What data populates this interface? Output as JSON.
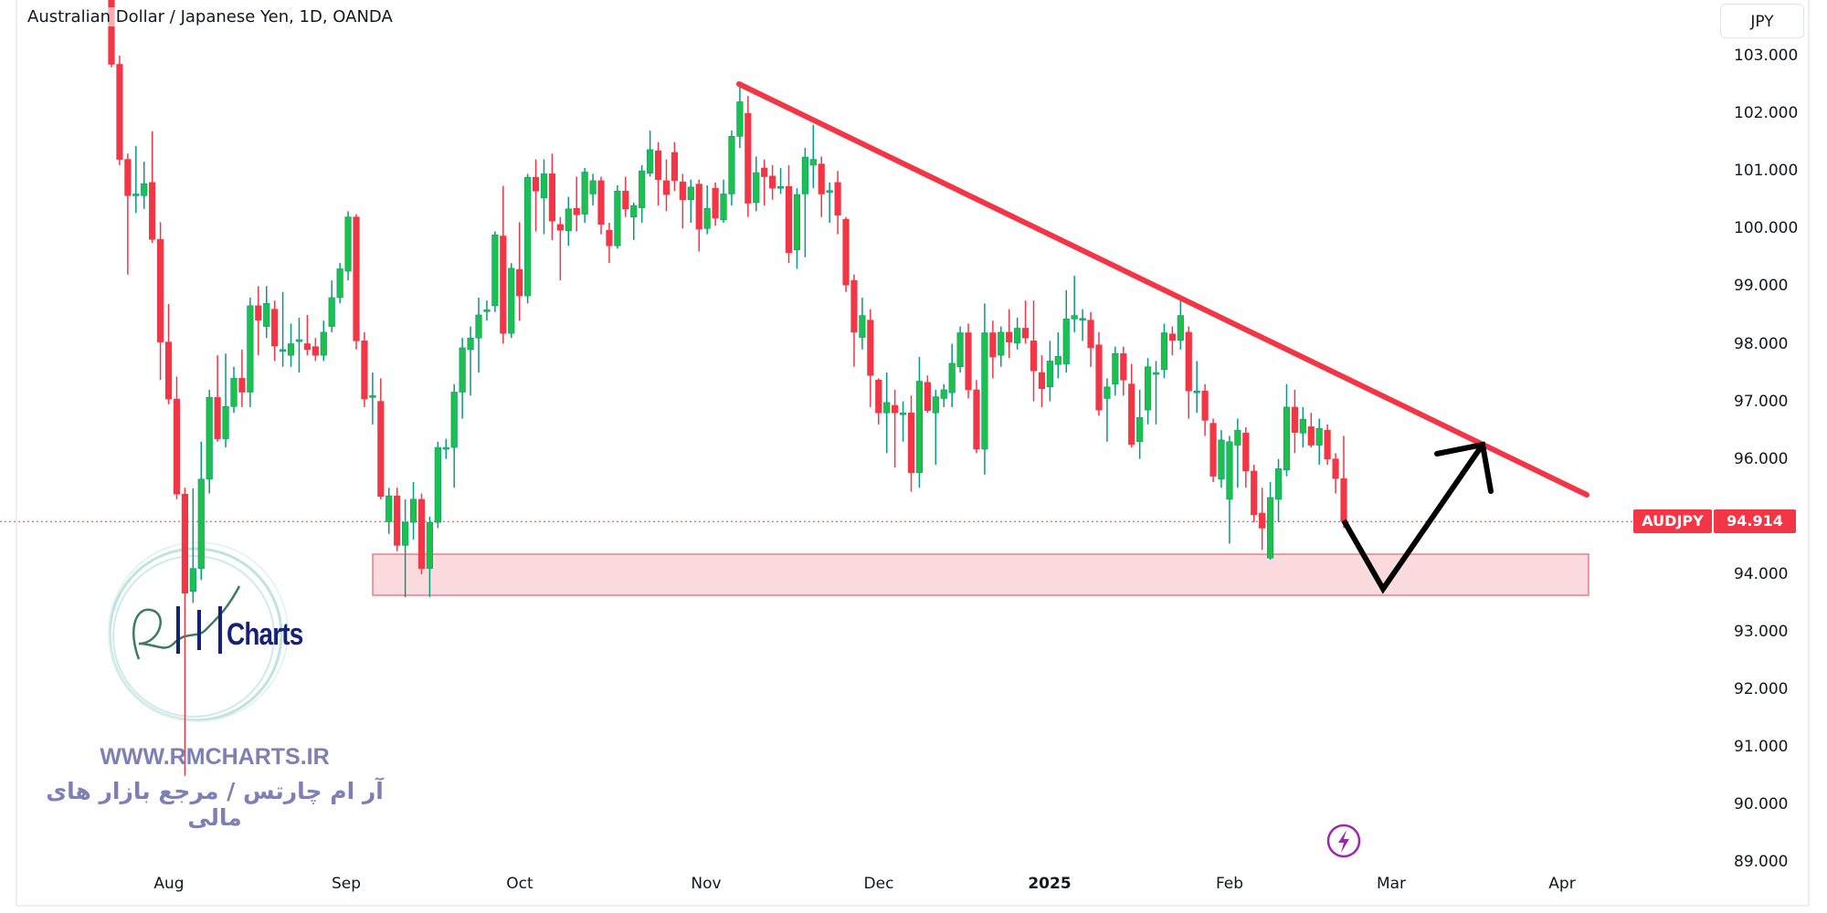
{
  "header": {
    "title": "Australian Dollar / Japanese Yen, 1D, OANDA",
    "currency": "JPY"
  },
  "price_label": {
    "symbol": "AUDJPY",
    "value": "94.914"
  },
  "watermark": {
    "url": "WWW.RMCHARTS.IR",
    "tagline": "آر ام چارتس / مرجع بازار های مالی",
    "logo_text": "Charts"
  },
  "icons": {
    "alert": "lightning-icon"
  },
  "colors": {
    "up": "#089981",
    "up_body": "#1bc14b",
    "down": "#f23645",
    "trendline": "#f23645",
    "zone_fill": "#fcd5d9",
    "arrow": "#000000",
    "last_price_line": "#f23645",
    "watermark": "#7d80b4",
    "alert_icon": "#9c27b0"
  },
  "chart_data": {
    "type": "candlestick",
    "title": "Australian Dollar / Japanese Yen, 1D, OANDA",
    "y_axis": {
      "ticks": [
        "103.000",
        "102.000",
        "101.000",
        "100.000",
        "99.000",
        "98.000",
        "97.000",
        "96.000",
        "94.000",
        "93.000",
        "92.000",
        "91.000",
        "90.000",
        "89.000"
      ],
      "range": [
        89,
        103
      ],
      "position": "right"
    },
    "x_axis": {
      "ticks": [
        "Aug",
        "Sep",
        "Oct",
        "Nov",
        "Dec",
        "2025",
        "Feb",
        "Mar",
        "Apr"
      ]
    },
    "last_price": 94.914,
    "grid": false,
    "ohlc": [
      [
        104.6,
        104.8,
        102.8,
        102.85
      ],
      [
        102.85,
        103.0,
        101.1,
        101.2
      ],
      [
        101.2,
        101.3,
        99.2,
        100.57
      ],
      [
        100.57,
        101.43,
        100.27,
        100.6
      ],
      [
        100.57,
        101.16,
        100.34,
        100.78
      ],
      [
        100.8,
        101.69,
        99.75,
        99.81
      ],
      [
        99.81,
        100.11,
        97.37,
        98.03
      ],
      [
        98.03,
        98.69,
        96.95,
        97.04
      ],
      [
        97.04,
        97.43,
        95.3,
        95.39
      ],
      [
        95.39,
        95.5,
        90.5,
        93.67
      ],
      [
        93.7,
        95.49,
        93.5,
        94.1
      ],
      [
        94.1,
        96.3,
        93.9,
        95.65
      ],
      [
        95.65,
        97.2,
        95.4,
        97.07
      ],
      [
        97.07,
        97.8,
        96.3,
        96.35
      ],
      [
        96.35,
        97.83,
        96.2,
        96.91
      ],
      [
        96.91,
        97.6,
        96.8,
        97.4
      ],
      [
        97.4,
        97.9,
        96.9,
        97.16
      ],
      [
        97.16,
        98.8,
        96.9,
        98.66
      ],
      [
        98.66,
        99.0,
        97.8,
        98.41
      ],
      [
        98.3,
        99.0,
        98.1,
        98.7
      ],
      [
        98.6,
        98.75,
        97.7,
        97.96
      ],
      [
        97.87,
        98.9,
        97.6,
        97.9
      ],
      [
        97.8,
        98.35,
        97.6,
        98.0
      ],
      [
        98.05,
        98.45,
        97.5,
        98.07
      ],
      [
        98.0,
        98.5,
        97.8,
        97.9
      ],
      [
        97.95,
        98.1,
        97.7,
        97.8
      ],
      [
        97.8,
        98.4,
        97.7,
        98.2
      ],
      [
        98.3,
        99.1,
        98.2,
        98.8
      ],
      [
        98.8,
        99.4,
        98.7,
        99.3
      ],
      [
        99.26,
        100.3,
        99.1,
        100.2
      ],
      [
        100.2,
        100.25,
        97.9,
        98.05
      ],
      [
        98.05,
        98.2,
        96.9,
        97.04
      ],
      [
        97.07,
        97.5,
        96.6,
        97.1
      ],
      [
        97.0,
        97.4,
        95.3,
        95.35
      ],
      [
        94.91,
        95.5,
        94.7,
        95.36
      ],
      [
        95.36,
        95.5,
        94.4,
        94.5
      ],
      [
        94.5,
        95.3,
        93.6,
        94.9
      ],
      [
        94.9,
        95.6,
        94.6,
        95.3
      ],
      [
        95.3,
        95.4,
        94.0,
        94.1
      ],
      [
        94.1,
        95.0,
        93.6,
        94.9
      ],
      [
        94.9,
        96.3,
        94.8,
        96.2
      ],
      [
        96.2,
        96.35,
        96.0,
        96.2
      ],
      [
        96.2,
        97.3,
        95.5,
        97.16
      ],
      [
        97.16,
        98.1,
        96.7,
        97.93
      ],
      [
        97.9,
        98.3,
        97.1,
        98.1
      ],
      [
        98.1,
        98.8,
        97.5,
        98.5
      ],
      [
        98.59,
        98.75,
        98.4,
        98.59
      ],
      [
        98.66,
        99.95,
        98.55,
        99.89
      ],
      [
        99.87,
        100.74,
        98.0,
        98.18
      ],
      [
        98.18,
        99.4,
        98.1,
        99.31
      ],
      [
        99.29,
        100.11,
        98.4,
        98.83
      ],
      [
        98.83,
        100.95,
        98.7,
        100.89
      ],
      [
        100.89,
        101.2,
        99.95,
        100.65
      ],
      [
        100.53,
        101.2,
        99.9,
        100.95
      ],
      [
        100.95,
        101.3,
        99.8,
        100.13
      ],
      [
        100.07,
        100.2,
        99.1,
        99.97
      ],
      [
        99.96,
        100.55,
        99.7,
        100.34
      ],
      [
        100.35,
        100.9,
        99.95,
        100.24
      ],
      [
        100.25,
        101.05,
        100.1,
        100.98
      ],
      [
        100.6,
        100.95,
        100.4,
        100.83
      ],
      [
        100.83,
        100.9,
        99.9,
        100.07
      ],
      [
        99.97,
        100.1,
        99.4,
        99.7
      ],
      [
        99.7,
        100.75,
        99.65,
        100.65
      ],
      [
        100.65,
        100.9,
        100.2,
        100.34
      ],
      [
        100.2,
        100.45,
        99.8,
        100.4
      ],
      [
        100.36,
        101.1,
        100.1,
        101.0
      ],
      [
        100.96,
        101.7,
        100.9,
        101.37
      ],
      [
        101.35,
        101.5,
        100.4,
        100.85
      ],
      [
        100.83,
        101.2,
        100.3,
        100.59
      ],
      [
        101.32,
        101.5,
        100.65,
        100.83
      ],
      [
        100.81,
        100.95,
        100.0,
        100.5
      ],
      [
        100.5,
        100.85,
        100.1,
        100.72
      ],
      [
        100.77,
        100.85,
        99.6,
        99.99
      ],
      [
        100.0,
        100.75,
        99.9,
        100.35
      ],
      [
        100.7,
        100.8,
        100.05,
        100.18
      ],
      [
        100.15,
        100.85,
        100.1,
        100.6
      ],
      [
        100.6,
        101.7,
        100.4,
        101.6
      ],
      [
        101.6,
        102.5,
        101.4,
        102.2
      ],
      [
        102.0,
        102.3,
        100.2,
        100.44
      ],
      [
        100.45,
        101.25,
        100.3,
        100.97
      ],
      [
        101.05,
        101.2,
        100.4,
        100.9
      ],
      [
        100.91,
        101.1,
        100.5,
        100.7
      ],
      [
        100.73,
        101.05,
        100.6,
        100.73
      ],
      [
        100.73,
        101.1,
        99.4,
        99.58
      ],
      [
        99.63,
        100.7,
        99.3,
        100.59
      ],
      [
        100.6,
        101.4,
        99.5,
        101.24
      ],
      [
        101.1,
        101.8,
        100.7,
        101.2
      ],
      [
        101.12,
        101.25,
        100.2,
        100.6
      ],
      [
        100.66,
        100.8,
        100.1,
        100.66
      ],
      [
        100.8,
        101.0,
        99.9,
        100.23
      ],
      [
        100.16,
        100.2,
        98.9,
        99.02
      ],
      [
        99.1,
        99.2,
        97.6,
        98.2
      ],
      [
        98.11,
        98.8,
        97.9,
        98.49
      ],
      [
        98.41,
        98.6,
        96.9,
        97.45
      ],
      [
        97.37,
        97.4,
        96.6,
        96.8
      ],
      [
        96.8,
        97.5,
        96.1,
        96.98
      ],
      [
        96.93,
        97.2,
        95.85,
        96.8
      ],
      [
        96.8,
        97.0,
        96.3,
        96.8
      ],
      [
        96.8,
        97.1,
        95.43,
        95.76
      ],
      [
        95.76,
        97.77,
        95.5,
        97.35
      ],
      [
        97.33,
        97.45,
        96.8,
        96.84
      ],
      [
        96.8,
        97.2,
        95.9,
        97.08
      ],
      [
        97.05,
        97.3,
        96.9,
        97.2
      ],
      [
        97.15,
        98.0,
        96.9,
        97.66
      ],
      [
        97.6,
        98.3,
        97.5,
        98.19
      ],
      [
        98.19,
        98.35,
        97.05,
        97.2
      ],
      [
        97.2,
        97.37,
        96.1,
        96.17
      ],
      [
        96.17,
        98.7,
        95.73,
        98.19
      ],
      [
        98.19,
        98.4,
        97.4,
        97.77
      ],
      [
        97.8,
        98.3,
        97.6,
        98.2
      ],
      [
        98.2,
        98.6,
        97.75,
        98.03
      ],
      [
        98.01,
        98.45,
        97.9,
        98.27
      ],
      [
        98.27,
        98.75,
        98.0,
        98.1
      ],
      [
        98.05,
        98.75,
        97.0,
        97.53
      ],
      [
        97.5,
        97.8,
        96.9,
        97.22
      ],
      [
        97.25,
        98.05,
        97.0,
        97.7
      ],
      [
        97.64,
        98.2,
        97.4,
        97.78
      ],
      [
        97.65,
        98.93,
        97.5,
        98.43
      ],
      [
        98.43,
        99.18,
        98.2,
        98.49
      ],
      [
        98.44,
        98.6,
        98.05,
        98.44
      ],
      [
        98.41,
        98.55,
        97.6,
        97.93
      ],
      [
        97.98,
        98.2,
        96.75,
        96.85
      ],
      [
        97.05,
        97.4,
        96.3,
        97.25
      ],
      [
        97.3,
        97.95,
        97.1,
        97.83
      ],
      [
        97.83,
        97.95,
        97.1,
        97.37
      ],
      [
        97.3,
        97.65,
        96.2,
        96.25
      ],
      [
        96.3,
        97.2,
        96.0,
        96.72
      ],
      [
        96.85,
        97.75,
        96.6,
        97.6
      ],
      [
        97.5,
        97.7,
        96.6,
        97.5
      ],
      [
        97.55,
        98.35,
        97.4,
        98.19
      ],
      [
        98.17,
        98.3,
        97.8,
        98.06
      ],
      [
        98.06,
        98.76,
        97.9,
        98.49
      ],
      [
        98.2,
        98.3,
        96.7,
        97.18
      ],
      [
        97.18,
        97.7,
        96.8,
        97.18
      ],
      [
        97.18,
        97.3,
        96.4,
        96.67
      ],
      [
        96.62,
        96.7,
        95.6,
        95.7
      ],
      [
        95.65,
        96.5,
        95.5,
        96.33
      ],
      [
        95.3,
        96.4,
        94.53,
        96.3
      ],
      [
        96.24,
        96.7,
        95.5,
        96.5
      ],
      [
        96.45,
        96.55,
        95.5,
        95.79
      ],
      [
        95.79,
        95.9,
        94.9,
        95.03
      ],
      [
        95.06,
        95.5,
        94.42,
        94.8
      ],
      [
        94.28,
        95.6,
        94.25,
        95.33
      ],
      [
        95.3,
        96.0,
        94.9,
        95.83
      ],
      [
        95.81,
        97.3,
        95.7,
        96.9
      ],
      [
        96.9,
        97.2,
        96.1,
        96.46
      ],
      [
        96.45,
        96.9,
        96.2,
        96.69
      ],
      [
        96.56,
        96.8,
        96.2,
        96.24
      ],
      [
        96.24,
        96.7,
        95.9,
        96.53
      ],
      [
        96.5,
        96.6,
        95.9,
        96.0
      ],
      [
        96.0,
        96.1,
        95.4,
        95.66
      ],
      [
        95.66,
        96.4,
        94.8,
        94.914
      ]
    ]
  }
}
